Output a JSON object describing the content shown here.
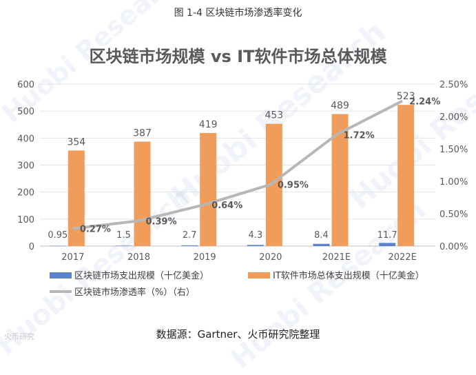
{
  "figure_caption": "图 1-4  区块链市场渗透率变化",
  "source": "数据源：Gartner、火币研究院整理",
  "watermark": "Huobi Research",
  "logo_text": "火币研究",
  "colors": {
    "blockchain_bar": "#5b82cc",
    "it_bar": "#f09d5b",
    "penetration_line": "#b7b7b7",
    "axis_text": "#595959"
  },
  "chart_data": {
    "type": "bar",
    "title": "区块链市场规模 vs IT软件市场总体规模",
    "categories": [
      "2017",
      "2018",
      "2019",
      "2020",
      "2021E",
      "2022E"
    ],
    "y_left": {
      "min": 0,
      "max": 600,
      "ticks": [
        "0",
        "100",
        "200",
        "300",
        "400",
        "500",
        "600"
      ]
    },
    "y_right": {
      "min": 0,
      "max": 0.025,
      "ticks": [
        "0.00%",
        "0.50%",
        "1.00%",
        "1.50%",
        "2.00%",
        "2.50%"
      ]
    },
    "grid": true,
    "legend_position": "bottom",
    "series": [
      {
        "name": "区块链市场支出规模（十亿美金）",
        "axis": "left",
        "kind": "bar",
        "values": [
          0.95,
          1.5,
          2.7,
          4.3,
          8.4,
          11.7
        ],
        "labels": [
          "0.95",
          "1.5",
          "2.7",
          "4.3",
          "8.4",
          "11.7"
        ]
      },
      {
        "name": "IT软件市场总体支出规模（十亿美金）",
        "axis": "left",
        "kind": "bar",
        "values": [
          354,
          387,
          419,
          453,
          489,
          523
        ],
        "labels": [
          "354",
          "387",
          "419",
          "453",
          "489",
          "523"
        ]
      },
      {
        "name": "区块链市场渗透率（%）（右）",
        "axis": "right",
        "kind": "line",
        "values": [
          0.0027,
          0.0039,
          0.0064,
          0.0095,
          0.0172,
          0.0224
        ],
        "labels": [
          "0.27%",
          "0.39%",
          "0.64%",
          "0.95%",
          "1.72%",
          "2.24%"
        ]
      }
    ]
  }
}
